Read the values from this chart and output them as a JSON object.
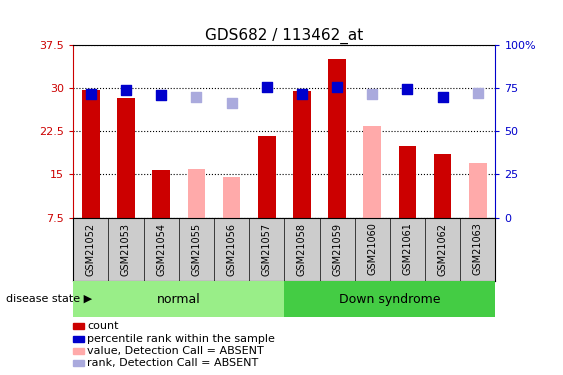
{
  "title": "GDS682 / 113462_at",
  "samples": [
    "GSM21052",
    "GSM21053",
    "GSM21054",
    "GSM21055",
    "GSM21056",
    "GSM21057",
    "GSM21058",
    "GSM21059",
    "GSM21060",
    "GSM21061",
    "GSM21062",
    "GSM21063"
  ],
  "count_values": [
    29.7,
    28.2,
    15.8,
    null,
    null,
    21.7,
    29.5,
    35.0,
    null,
    20.0,
    18.5,
    null
  ],
  "count_absent_values": [
    null,
    null,
    null,
    16.0,
    14.5,
    null,
    null,
    null,
    23.5,
    null,
    null,
    17.0
  ],
  "rank_values": [
    29.0,
    29.6,
    28.8,
    null,
    null,
    30.2,
    29.0,
    30.2,
    null,
    29.8,
    28.5,
    null
  ],
  "rank_absent_values": [
    null,
    null,
    null,
    28.5,
    27.5,
    null,
    null,
    null,
    29.0,
    null,
    null,
    29.2
  ],
  "normal_samples": [
    0,
    1,
    2,
    3,
    4,
    5
  ],
  "downsyndrome_samples": [
    6,
    7,
    8,
    9,
    10,
    11
  ],
  "ylim_left": [
    7.5,
    37.5
  ],
  "ylim_right": [
    0,
    100
  ],
  "yticks_left": [
    7.5,
    15.0,
    22.5,
    30.0,
    37.5
  ],
  "yticks_right": [
    0,
    25,
    50,
    75,
    100
  ],
  "ytick_labels_left": [
    "7.5",
    "15",
    "22.5",
    "30",
    "37.5"
  ],
  "ytick_labels_right": [
    "0",
    "25",
    "50",
    "75",
    "100%"
  ],
  "color_count": "#cc0000",
  "color_rank": "#0000cc",
  "color_count_absent": "#ffaaaa",
  "color_rank_absent": "#aaaadd",
  "normal_bg": "#99ee88",
  "downsyndrome_bg": "#44cc44",
  "label_bg": "#cccccc",
  "dotted_line_color": "#000000",
  "bar_width": 0.5,
  "rank_marker_size": 45,
  "legend_items": [
    "count",
    "percentile rank within the sample",
    "value, Detection Call = ABSENT",
    "rank, Detection Call = ABSENT"
  ]
}
